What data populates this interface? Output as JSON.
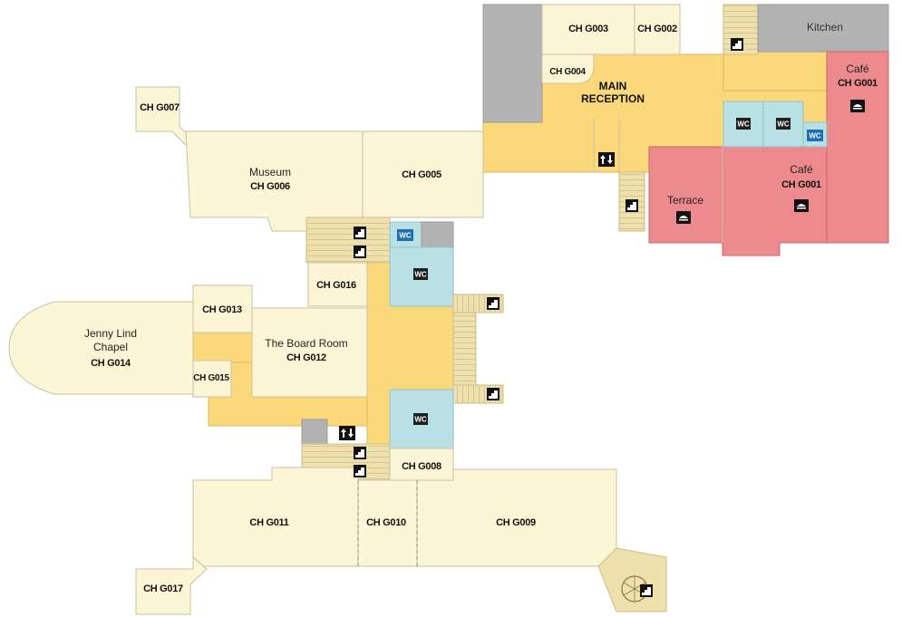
{
  "rooms": {
    "ch_g003": "CH G003",
    "ch_g002": "CH G002",
    "ch_g004": "CH G004",
    "main_reception_1": "MAIN",
    "main_reception_2": "RECEPTION",
    "kitchen": "Kitchen",
    "cafe_name": "Café",
    "cafe_code": "CH G001",
    "cafe2_name": "Café",
    "cafe2_code": "CH G001",
    "terrace": "Terrace",
    "ch_g007": "CH G007",
    "museum_name": "Museum",
    "museum_code": "CH G006",
    "ch_g005": "CH G005",
    "ch_g016": "CH G016",
    "ch_g013": "CH G013",
    "chapel_line1": "Jenny Lind",
    "chapel_line2": "Chapel",
    "chapel_code": "CH G014",
    "board_name": "The Board Room",
    "board_code": "CH G012",
    "ch_g015": "CH G015",
    "ch_g008": "CH G008",
    "ch_g011": "CH G011",
    "ch_g010": "CH G010",
    "ch_g009": "CH G009",
    "ch_g017": "CH G017"
  },
  "icons": {
    "wc_label": "WC",
    "lift_icon": "lift-icon",
    "stairs_icon": "stairs-icon",
    "food_icon": "food-service-icon",
    "spiral_stairs_icon": "spiral-stairs-icon"
  },
  "colors": {
    "room": "#fdf6d6",
    "corridor": "#fbd97a",
    "cafe": "#ec8a8e",
    "wc": "#b9e0e4",
    "service": "#b3b3b3",
    "icon_wc": "#1f6fb3"
  }
}
